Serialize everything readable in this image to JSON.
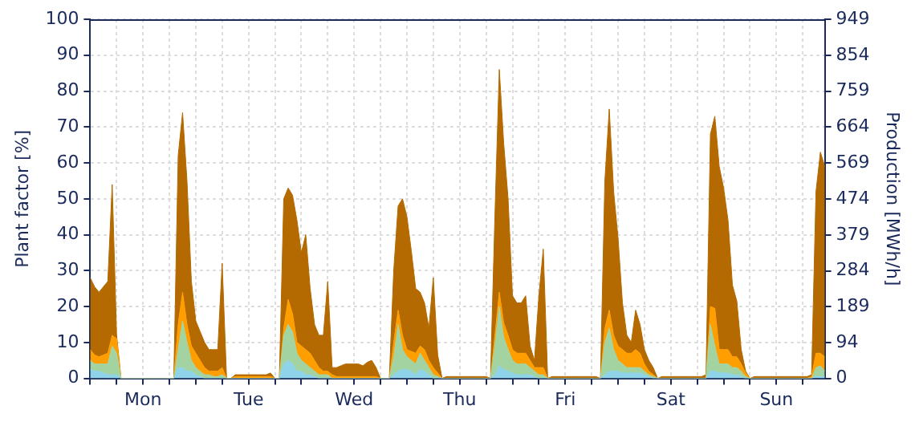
{
  "chart_data": {
    "type": "area",
    "stacked": true,
    "ylabel": "Plant factor [%]",
    "y2label": "Production [MWh/h]",
    "grid": true,
    "legend": false,
    "marker": "none",
    "categories": [
      null,
      null,
      null,
      null,
      null,
      null,
      null,
      null,
      null,
      null,
      null,
      null,
      "Mon",
      null,
      null,
      null,
      null,
      null,
      null,
      null,
      null,
      null,
      null,
      null,
      null,
      null,
      null,
      null,
      null,
      null,
      null,
      null,
      null,
      null,
      null,
      null,
      "Tue",
      null,
      null,
      null,
      null,
      null,
      null,
      null,
      null,
      null,
      null,
      null,
      null,
      null,
      null,
      null,
      null,
      null,
      null,
      null,
      null,
      null,
      null,
      null,
      "Wed",
      null,
      null,
      null,
      null,
      null,
      null,
      null,
      null,
      null,
      null,
      null,
      null,
      null,
      null,
      null,
      null,
      null,
      null,
      null,
      null,
      null,
      null,
      null,
      "Thu",
      null,
      null,
      null,
      null,
      null,
      null,
      null,
      null,
      null,
      null,
      null,
      null,
      null,
      null,
      null,
      null,
      null,
      null,
      null,
      null,
      null,
      null,
      null,
      "Fri",
      null,
      null,
      null,
      null,
      null,
      null,
      null,
      null,
      null,
      null,
      null,
      null,
      null,
      null,
      null,
      null,
      null,
      null,
      null,
      null,
      null,
      null,
      null,
      "Sat",
      null,
      null,
      null,
      null,
      null,
      null,
      null,
      null,
      null,
      null,
      null,
      null,
      null,
      null,
      null,
      null,
      null,
      null,
      null,
      null,
      null,
      null,
      null,
      "Sun",
      null,
      null,
      null,
      null,
      null,
      null,
      null,
      null,
      null,
      null,
      null
    ],
    "ylim": [
      0,
      100
    ],
    "yticks": [
      0,
      10,
      20,
      30,
      40,
      50,
      60,
      70,
      80,
      90,
      100
    ],
    "y2lim": [
      0,
      949
    ],
    "y2ticks": [
      0,
      94,
      189,
      284,
      379,
      474,
      569,
      664,
      759,
      854,
      949
    ],
    "series": [
      {
        "color": "#8fd3e8",
        "values": [
          2.5,
          2,
          2,
          1.5,
          1,
          1,
          1,
          0,
          0,
          0,
          0,
          0,
          0,
          0,
          0,
          0,
          0,
          0,
          0,
          0,
          3,
          3,
          2,
          2,
          1,
          0.5,
          0,
          0,
          0,
          0,
          0,
          0,
          0,
          0,
          0,
          0,
          0,
          0,
          0,
          0,
          0,
          0,
          0,
          0,
          4,
          5,
          4,
          2,
          2,
          1,
          1,
          0.5,
          0,
          0,
          0,
          0,
          0,
          0,
          0,
          0,
          0,
          0,
          0,
          0,
          0,
          0,
          0,
          0,
          0,
          1,
          2,
          2.5,
          2.5,
          2,
          1,
          2.5,
          2,
          1,
          0,
          0,
          0,
          0,
          0,
          0,
          0,
          0,
          0,
          0,
          0,
          0,
          0,
          0,
          1,
          3.5,
          2.5,
          2,
          1.5,
          1,
          1,
          1,
          1,
          0.5,
          0,
          0,
          0,
          0,
          0,
          0,
          0,
          0,
          0,
          0,
          0,
          0,
          0,
          0,
          0,
          1,
          2,
          2,
          2,
          1.5,
          1.5,
          1.5,
          1.5,
          1.5,
          1,
          0.5,
          0,
          0,
          0,
          0,
          0,
          0,
          0,
          0,
          0,
          0,
          0,
          0,
          0,
          2,
          2,
          1.5,
          1.5,
          1.5,
          1,
          1,
          0.5,
          0,
          0,
          0,
          0,
          0,
          0,
          0,
          0,
          0,
          0,
          0,
          0,
          0,
          0,
          0,
          0,
          0.5,
          0.5,
          0.5
        ]
      },
      {
        "color": "#a3d3a0",
        "values": [
          2.5,
          2,
          2,
          2.5,
          3,
          8,
          6,
          0,
          0,
          0,
          0,
          0,
          0,
          0,
          0,
          0,
          0,
          0,
          0,
          0,
          5,
          13,
          8,
          3,
          2,
          1.5,
          1,
          1,
          0.5,
          0.5,
          1,
          0,
          0,
          0,
          0,
          0,
          0,
          0,
          0,
          0,
          0,
          0,
          0,
          0,
          8,
          10,
          9,
          5,
          3,
          3,
          2,
          1.5,
          1,
          1,
          1,
          0,
          0,
          0,
          0,
          0,
          0,
          0,
          0,
          0,
          0,
          0,
          0,
          0,
          0,
          5,
          13,
          5.5,
          3.5,
          3,
          3,
          4.5,
          3,
          2,
          1,
          0.5,
          0,
          0,
          0,
          0,
          0,
          0,
          0,
          0,
          0,
          0,
          0,
          0,
          8,
          16.5,
          9,
          6,
          3.5,
          3,
          3,
          3,
          2,
          1.5,
          1,
          1,
          0,
          0,
          0,
          0,
          0,
          0,
          0,
          0,
          0,
          0,
          0,
          0,
          0,
          9,
          12,
          6,
          3,
          2.5,
          1.5,
          1.5,
          1.5,
          1.5,
          1,
          0.5,
          0.5,
          0,
          0,
          0,
          0,
          0,
          0,
          0,
          0,
          0,
          0,
          0,
          0,
          13,
          7,
          2.5,
          2.5,
          2.5,
          2,
          2,
          1.5,
          0.5,
          0,
          0,
          0,
          0,
          0,
          0,
          0,
          0,
          0,
          0,
          0,
          0,
          0,
          0,
          0,
          2.5,
          3,
          1.5
        ]
      },
      {
        "color": "#ff9e00",
        "values": [
          3,
          2.5,
          2,
          2.5,
          3,
          3,
          4,
          0,
          0,
          0,
          0,
          0,
          0,
          0,
          0,
          0,
          0,
          0,
          0,
          0,
          7,
          8,
          5,
          4,
          4,
          3,
          2,
          1,
          1.5,
          1.5,
          2,
          0,
          0,
          0.5,
          0.5,
          0.5,
          0.5,
          0.5,
          0.5,
          0.5,
          0.5,
          0.5,
          0,
          0,
          2,
          7,
          5,
          3,
          4,
          4,
          4,
          3,
          2,
          1,
          1,
          1,
          0.5,
          0.5,
          0.5,
          0.5,
          0.5,
          0.5,
          0.5,
          0.5,
          0.5,
          0.5,
          0,
          0,
          0,
          4,
          4,
          4,
          2,
          2.5,
          3,
          2,
          3,
          2,
          2,
          1,
          0,
          0,
          0,
          0,
          0,
          0,
          0,
          0,
          0,
          0,
          0,
          0,
          3,
          4,
          4,
          4,
          3,
          3,
          3,
          3,
          2,
          1,
          2,
          2,
          0,
          0,
          0,
          0,
          0,
          0,
          0,
          0,
          0,
          0,
          0,
          0,
          0,
          4,
          5,
          4,
          4,
          4,
          4,
          4,
          5,
          4,
          2,
          1,
          0.5,
          0,
          0,
          0,
          0,
          0,
          0,
          0,
          0,
          0,
          0,
          0,
          0,
          5,
          10.5,
          4,
          4,
          4,
          3,
          3,
          2,
          1,
          0,
          0,
          0,
          0,
          0,
          0,
          0,
          0,
          0,
          0,
          0,
          0,
          0,
          0,
          0.5,
          4,
          3.5,
          4
        ]
      },
      {
        "color": "#b46a00",
        "values": [
          20,
          19,
          18,
          19,
          20,
          42,
          1,
          0,
          0,
          0,
          0,
          0,
          0,
          0,
          0,
          0,
          0,
          0,
          0,
          0,
          47,
          50,
          40,
          18,
          9,
          8,
          7,
          6,
          6,
          6,
          29,
          0,
          0,
          0.5,
          0.5,
          0.5,
          0.5,
          0.5,
          0.5,
          0.5,
          0.5,
          1,
          0,
          0,
          36,
          31,
          33,
          34,
          26,
          32,
          18,
          10,
          9,
          10,
          25,
          2,
          2.5,
          3,
          3.5,
          3.5,
          3.5,
          3.5,
          3,
          4,
          4.5,
          2.5,
          0,
          0,
          0,
          20,
          29,
          38,
          37,
          28,
          18,
          15,
          13,
          9,
          25,
          5,
          0,
          0.5,
          0.5,
          0.5,
          0.5,
          0.5,
          0.5,
          0.5,
          0.5,
          0.5,
          0.5,
          0,
          33,
          62,
          50,
          38,
          15,
          14,
          14,
          16,
          4,
          2,
          20,
          33,
          0,
          0.5,
          0.5,
          0.5,
          0.5,
          0.5,
          0.5,
          0.5,
          0.5,
          0.5,
          0.5,
          0.5,
          0,
          41,
          56,
          40,
          30,
          13,
          5,
          3,
          11,
          8,
          4,
          3,
          2,
          0,
          0.5,
          0.5,
          0.5,
          0.5,
          0.5,
          0.5,
          0.5,
          0.5,
          0.5,
          0.5,
          1,
          48,
          53.5,
          51,
          45,
          36,
          20,
          15.5,
          4,
          0.5,
          0,
          0.5,
          0.5,
          0.5,
          0.5,
          0.5,
          0.5,
          0.5,
          0.5,
          0.5,
          0.5,
          0.5,
          0.5,
          0.5,
          0.5,
          45,
          56,
          53
        ]
      }
    ]
  }
}
